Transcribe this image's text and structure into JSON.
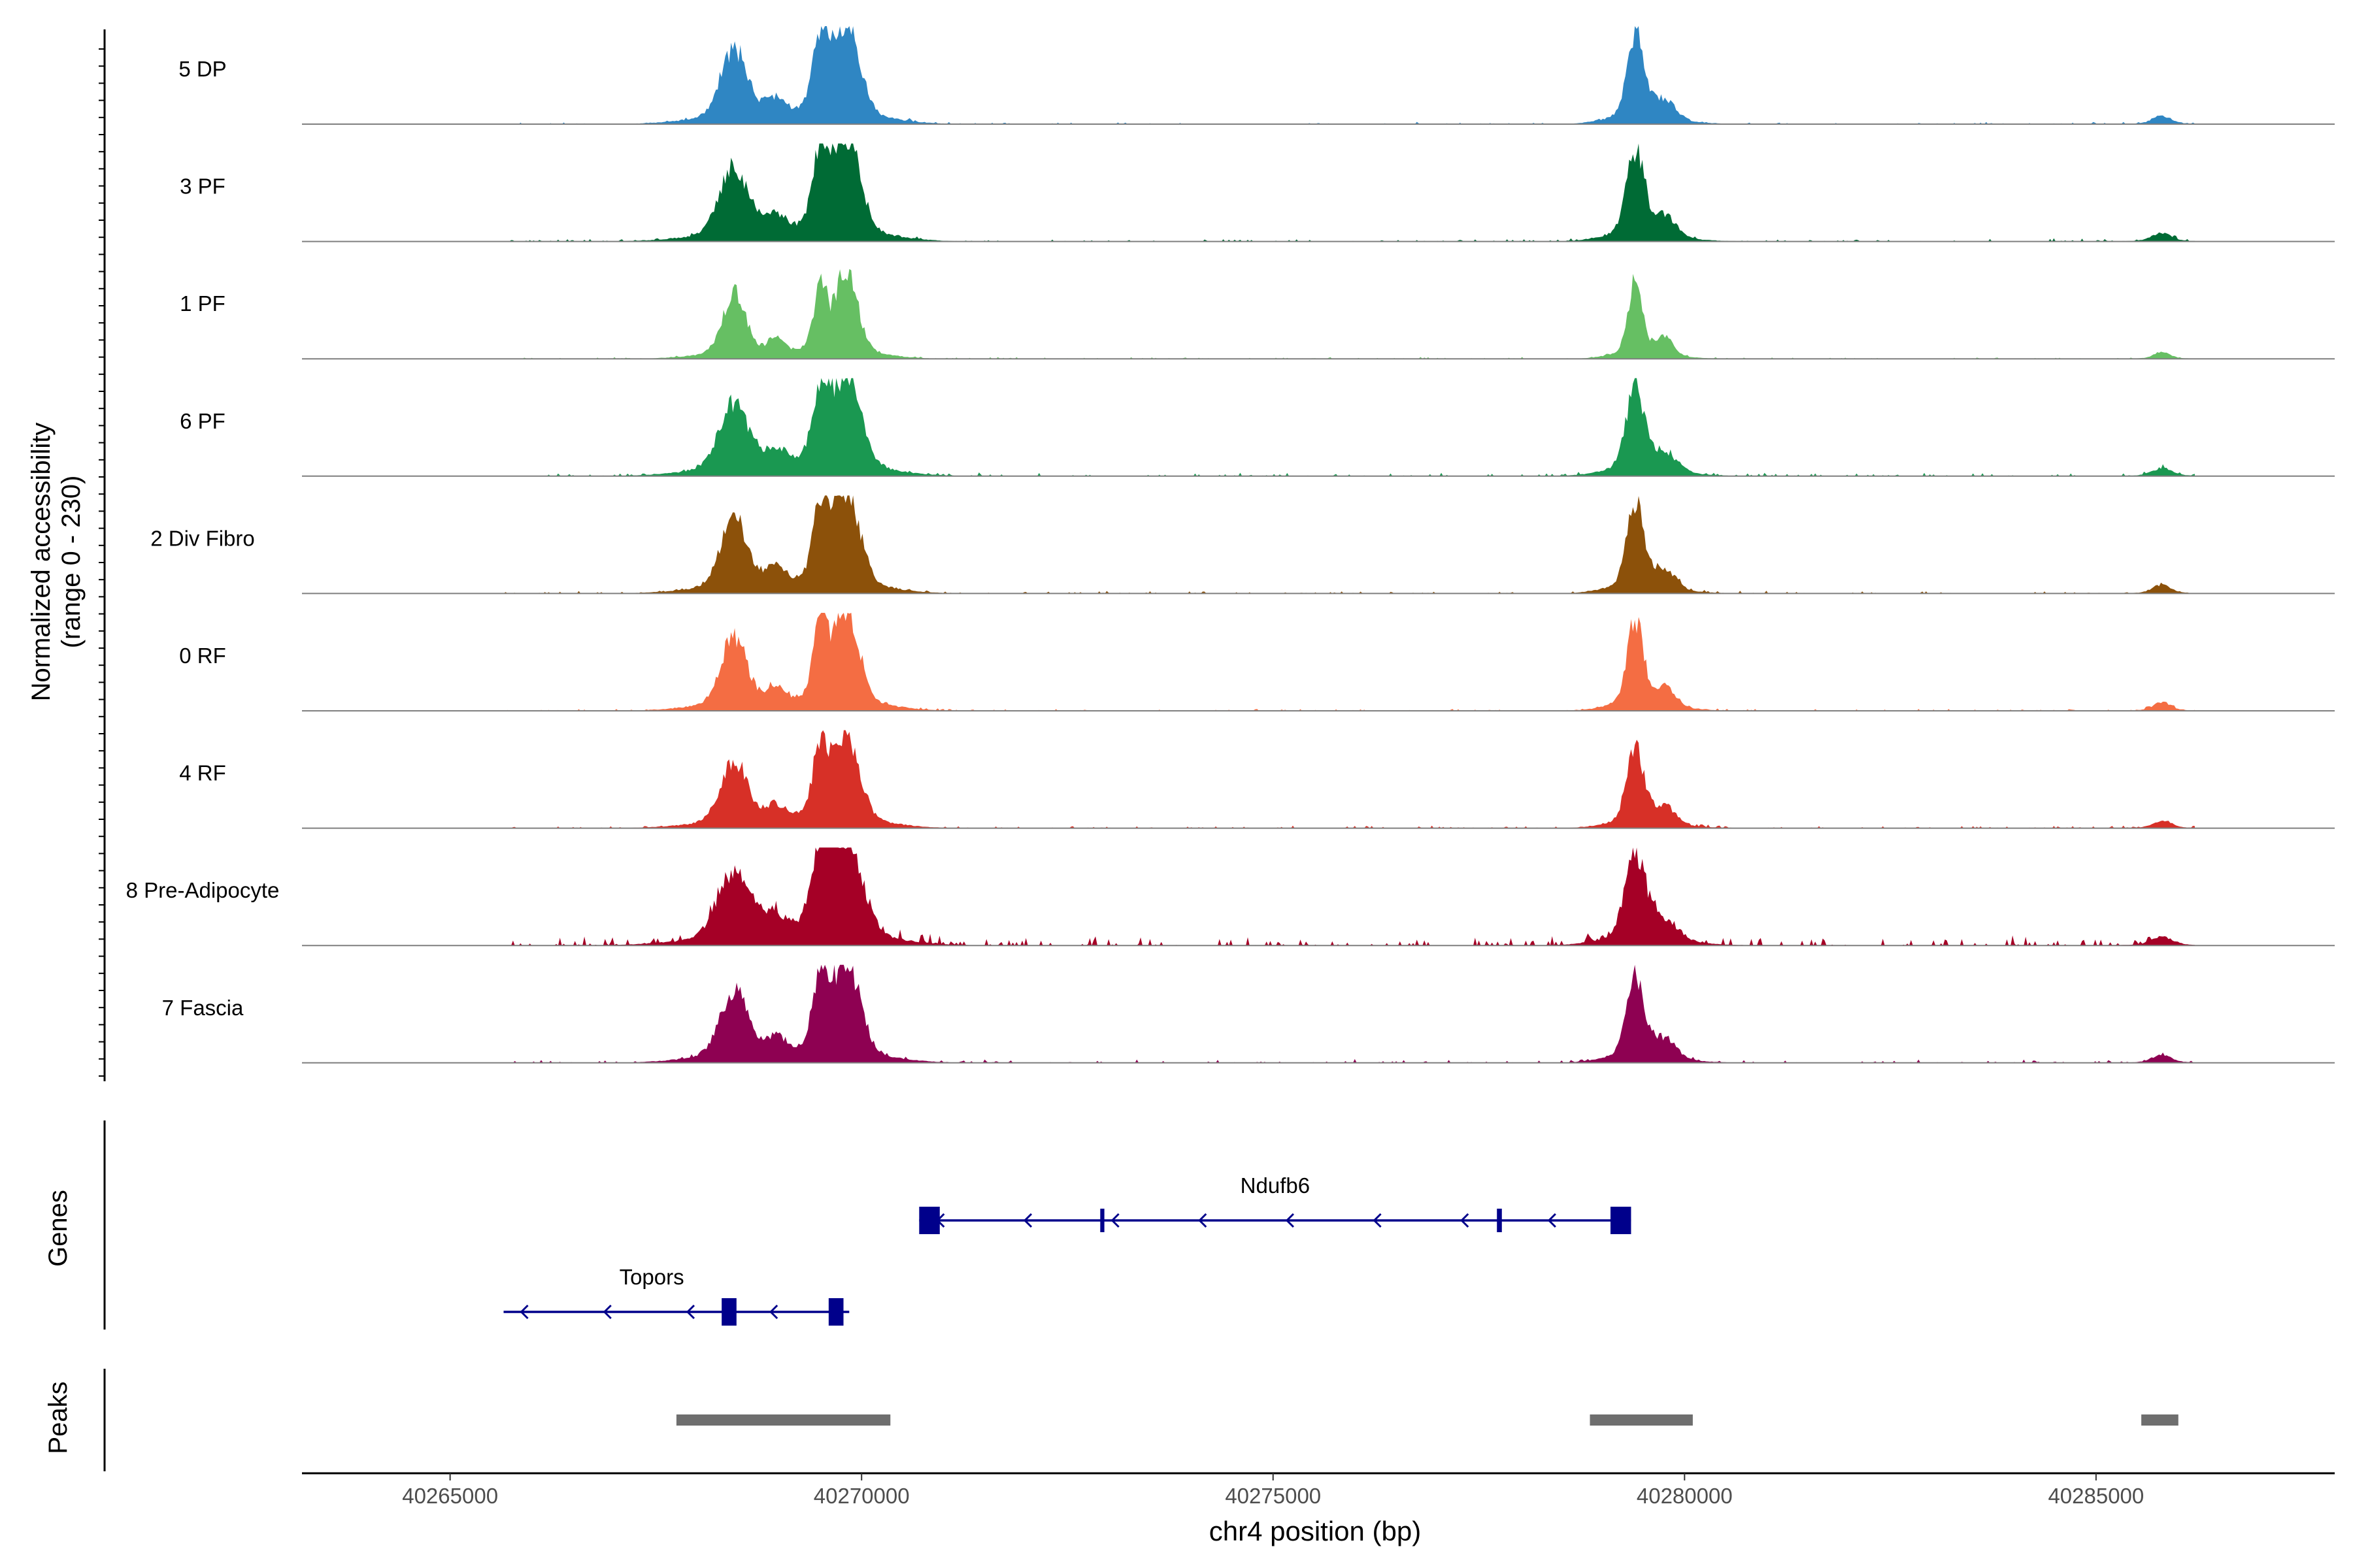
{
  "chart_data": {
    "type": "area",
    "title": "",
    "region": "chr4",
    "ylabel_line1": "Normalized accessibility",
    "ylabel_line2": "(range 0 - 230)",
    "y_range": [
      0,
      230
    ],
    "xlabel": "chr4 position (bp)",
    "xlim": [
      40263200,
      40287900
    ],
    "x_ticks": [
      40265000,
      40270000,
      40275000,
      40280000,
      40285000
    ],
    "x_tick_labels": [
      "40265000",
      "40270000",
      "40275000",
      "40280000",
      "40285000"
    ],
    "tracks": [
      {
        "name": "5 DP",
        "color": "#2f86c3",
        "scale": 1.0,
        "noise": 0.05,
        "ext": 0.9,
        "seed": 11
      },
      {
        "name": "3 PF",
        "color": "#006b35",
        "scale": 1.0,
        "noise": 0.07,
        "ext": 0.95,
        "seed": 23
      },
      {
        "name": "1 PF",
        "color": "#66bf63",
        "scale": 0.88,
        "noise": 0.04,
        "ext": 0.75,
        "seed": 37
      },
      {
        "name": "6 PF",
        "color": "#1a9851",
        "scale": 0.95,
        "noise": 0.08,
        "ext": 1.0,
        "seed": 41
      },
      {
        "name": "2 Div Fibro",
        "color": "#8c510a",
        "scale": 1.0,
        "noise": 0.06,
        "ext": 0.9,
        "seed": 53
      },
      {
        "name": "0 RF",
        "color": "#f46d43",
        "scale": 1.0,
        "noise": 0.05,
        "ext": 0.85,
        "seed": 67
      },
      {
        "name": "4 RF",
        "color": "#d73027",
        "scale": 0.9,
        "noise": 0.06,
        "ext": 0.9,
        "seed": 71
      },
      {
        "name": "8 Pre-Adipocyte",
        "color": "#a50026",
        "scale": 1.0,
        "noise": 0.22,
        "ext": 1.1,
        "seed": 89
      },
      {
        "name": "7 Fascia",
        "color": "#8e0152",
        "scale": 0.95,
        "noise": 0.08,
        "ext": 0.95,
        "seed": 97
      }
    ],
    "peak_profile": [
      {
        "pos": 40268450,
        "height": 0.7,
        "width": 180
      },
      {
        "pos": 40268950,
        "height": 0.18,
        "width": 130
      },
      {
        "pos": 40269500,
        "height": 0.75,
        "width": 100
      },
      {
        "pos": 40269820,
        "height": 0.95,
        "width": 170
      },
      {
        "pos": 40279400,
        "height": 0.85,
        "width": 110
      },
      {
        "pos": 40279750,
        "height": 0.2,
        "width": 150
      },
      {
        "pos": 40285800,
        "height": 0.08,
        "width": 120
      }
    ],
    "genes": [
      {
        "name": "Ndufb6",
        "strand": "-",
        "start": 40270700,
        "end": 40279350,
        "exons": [
          [
            40270700,
            40270950
          ],
          [
            40272900,
            40272950
          ],
          [
            40277720,
            40277780
          ],
          [
            40279100,
            40279350
          ]
        ]
      },
      {
        "name": "Topors",
        "strand": "-",
        "start": 40265650,
        "end": 40269850,
        "exons": [
          [
            40268300,
            40268480
          ],
          [
            40269600,
            40269780
          ]
        ]
      }
    ],
    "peaks": [
      [
        40267750,
        40270350
      ],
      [
        40278850,
        40280100
      ],
      [
        40285550,
        40286000
      ]
    ],
    "genes_label": "Genes",
    "peaks_label": "Peaks",
    "gene_color": "#00008b",
    "peak_color": "#6e6e6e"
  }
}
